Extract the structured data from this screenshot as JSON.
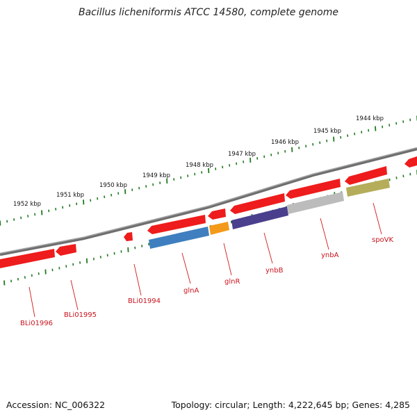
{
  "title": "Bacillus licheniformis ATCC 14580, complete genome",
  "footer": {
    "accession": "Accession: NC_006322",
    "summary": "Topology: circular; Length: 4,222,645 bp; Genes: 4,285"
  },
  "scale_labels": [
    "1952 kbp",
    "1951 kbp",
    "1950 kbp",
    "1949 kbp",
    "1948 kbp",
    "1947 kbp",
    "1946 kbp",
    "1945 kbp",
    "1944 kbp"
  ],
  "gene_labels": [
    "BLi01996",
    "BLi01995",
    "BLi01994",
    "glnA",
    "glnR",
    "ynbB",
    "ynbA",
    "spoVK"
  ],
  "colors": {
    "backbone": "#7a7a7a",
    "tick": "#1f7a1f",
    "gene_red": "#ee1c1c",
    "label_red": "#c8141e",
    "glnA": "#3f7fbf",
    "glnR": "#f39a1a",
    "ynbB": "#4a3f8c",
    "ynbA": "#bcbcbc",
    "spoVK": "#b5ad5a"
  }
}
